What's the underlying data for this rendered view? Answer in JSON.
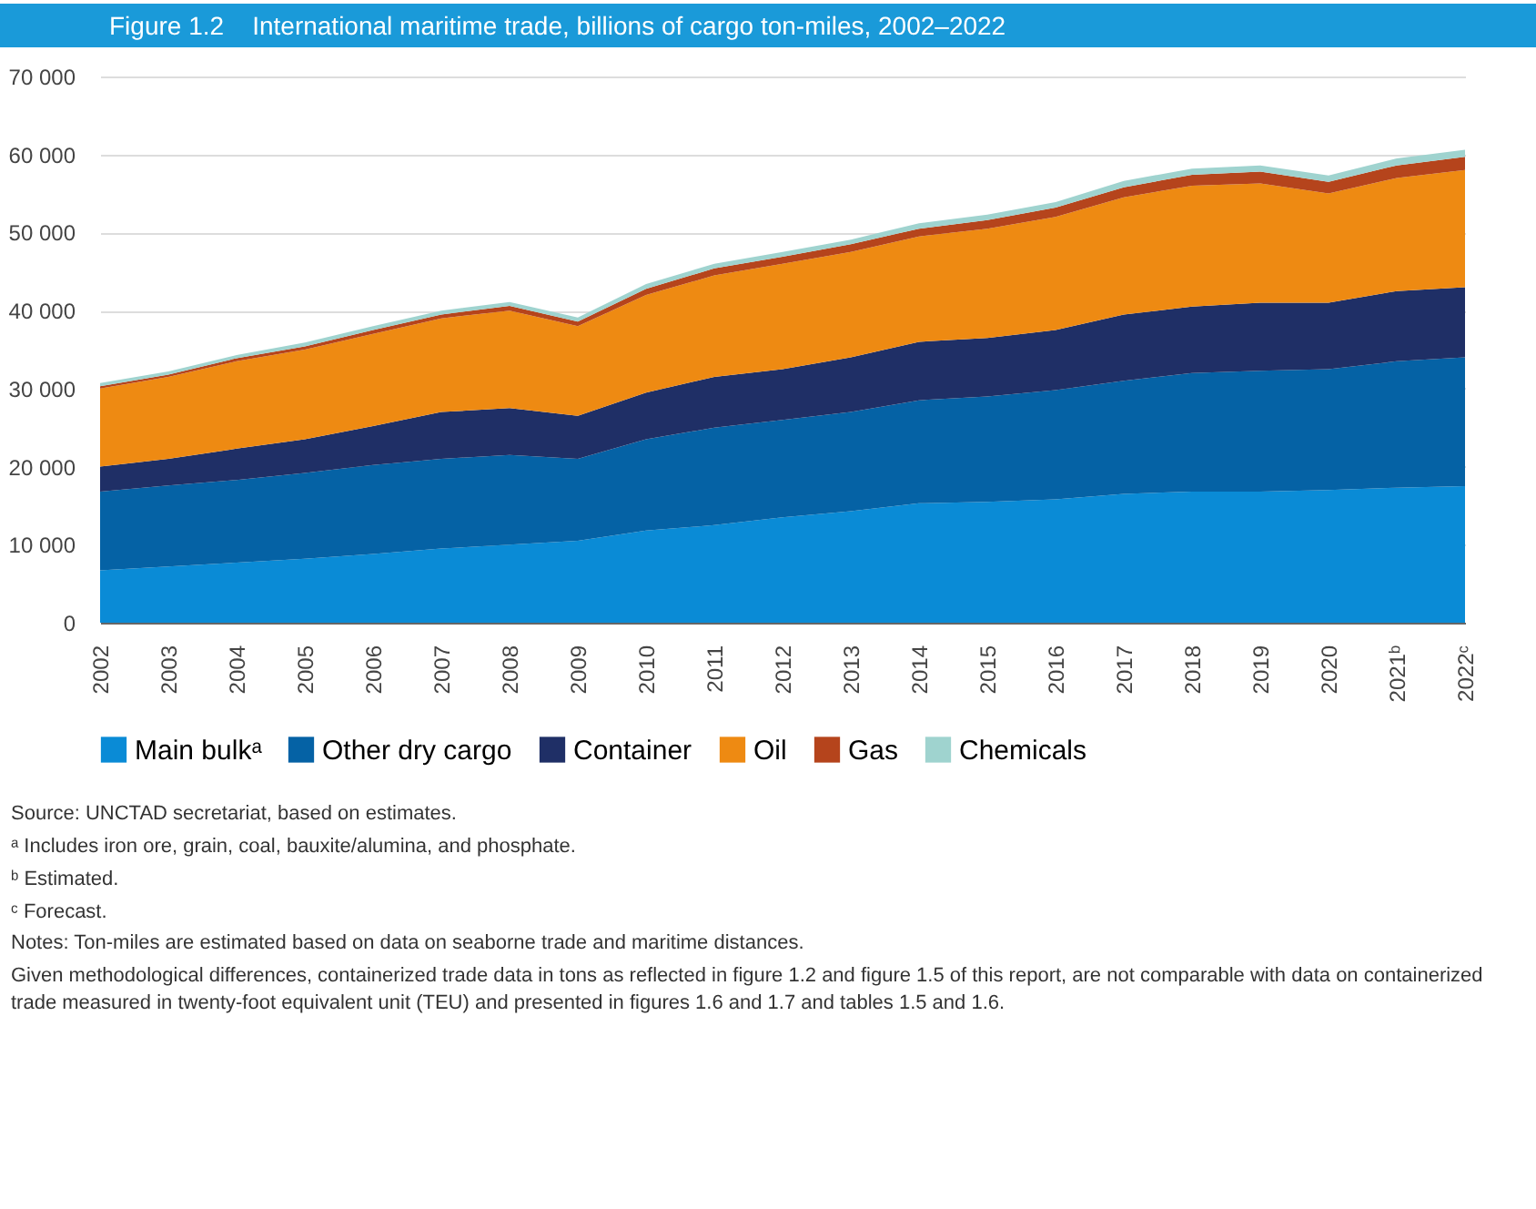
{
  "chart_data": {
    "type": "area",
    "stacked": true,
    "title": "Figure 1.2    International maritime trade, billions of cargo ton-miles, 2002–2022",
    "categories": [
      "2002",
      "2003",
      "2004",
      "2005",
      "2006",
      "2007",
      "2008",
      "2009",
      "2010",
      "2011",
      "2012",
      "2013",
      "2014",
      "2015",
      "2016",
      "2017",
      "2018",
      "2019",
      "2020",
      "2021ᵇ",
      "2022ᶜ"
    ],
    "series": [
      {
        "name": "Main bulkᵃ",
        "color": "#0a8bd6",
        "values": [
          6700,
          7200,
          7700,
          8200,
          8800,
          9500,
          10000,
          10500,
          11800,
          12500,
          13500,
          14300,
          15300,
          15500,
          15800,
          16500,
          16800,
          16800,
          17000,
          17300,
          17500
        ]
      },
      {
        "name": "Other dry cargo",
        "color": "#0562a5",
        "values": [
          10100,
          10400,
          10600,
          11000,
          11400,
          11500,
          11500,
          10500,
          11700,
          12500,
          12500,
          12700,
          13200,
          13500,
          14000,
          14500,
          15200,
          15500,
          15500,
          16200,
          16500
        ]
      },
      {
        "name": "Container",
        "color": "#1f2f66",
        "values": [
          3200,
          3400,
          4000,
          4300,
          5000,
          6000,
          6000,
          5500,
          6000,
          6500,
          6500,
          7000,
          7500,
          7500,
          7700,
          8500,
          8500,
          8700,
          8500,
          9000,
          9000
        ]
      },
      {
        "name": "Oil",
        "color": "#ee8a12",
        "values": [
          10000,
          10500,
          11200,
          11500,
          11800,
          12000,
          12500,
          11500,
          12500,
          13000,
          13500,
          13500,
          13500,
          14000,
          14500,
          15000,
          15500,
          15300,
          14000,
          14500,
          15000
        ]
      },
      {
        "name": "Gas",
        "color": "#b5441c",
        "values": [
          300,
          300,
          400,
          400,
          500,
          500,
          600,
          600,
          800,
          900,
          900,
          1000,
          1000,
          1100,
          1200,
          1300,
          1400,
          1500,
          1500,
          1600,
          1700
        ]
      },
      {
        "name": "Chemicals",
        "color": "#9fd3cf",
        "values": [
          400,
          400,
          400,
          500,
          500,
          500,
          500,
          500,
          600,
          600,
          600,
          600,
          700,
          700,
          700,
          800,
          800,
          800,
          800,
          900,
          900
        ]
      }
    ],
    "ylim": [
      0,
      70000
    ],
    "yticks": [
      0,
      {
        "value": 10000,
        "label": "10 000"
      },
      {
        "value": 20000,
        "label": "20 000"
      },
      {
        "value": 30000,
        "label": "30 000"
      },
      {
        "value": 40000,
        "label": "40 000"
      },
      {
        "value": 50000,
        "label": "50 000"
      },
      {
        "value": 60000,
        "label": "60 000"
      },
      {
        "value": 70000,
        "label": "70 000"
      }
    ],
    "grid": "y",
    "legend": "bottom",
    "annotations": [
      "Source: UNCTAD secretariat, based on estimates.",
      "ᵃ Includes iron ore, grain, coal, bauxite/alumina, and phosphate.",
      "ᵇ Estimated.",
      "ᶜ Forecast.",
      "Notes: Ton-miles are estimated based on data on seaborne trade and maritime distances.",
      "Given methodological differences, containerized trade data in tons as reflected in figure 1.2 and figure 1.5 of this report, are not comparable with data on containerized trade measured in twenty-foot equivalent unit (TEU) and presented in figures 1.6 and 1.7 and tables 1.5 and 1.6."
    ]
  }
}
